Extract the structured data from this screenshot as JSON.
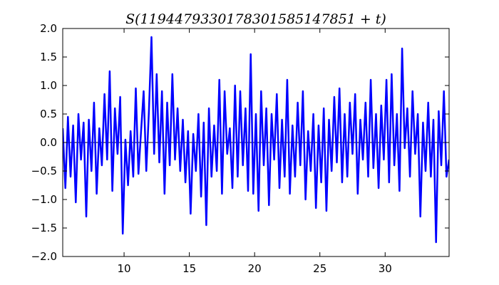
{
  "chart_data": {
    "type": "line",
    "title": "S(1194479330178301585147851 + t)",
    "xlabel": "",
    "ylabel": "",
    "xlim": [
      5.3,
      34.9
    ],
    "ylim": [
      -2.0,
      2.0
    ],
    "x_ticks": [
      10,
      15,
      20,
      25,
      30
    ],
    "y_ticks": [
      -2.0,
      -1.5,
      -1.0,
      -0.5,
      0.0,
      0.5,
      1.0,
      1.5,
      2.0
    ],
    "x_tick_labels": [
      "10",
      "15",
      "20",
      "25",
      "30"
    ],
    "y_tick_labels": [
      "−2.0",
      "−1.5",
      "−1.0",
      "−0.5",
      "0.0",
      "0.5",
      "1.0",
      "1.5",
      "2.0"
    ],
    "baseline_y": 0.0,
    "grid": false,
    "legend": "none",
    "series": [
      {
        "color": "#0000ff",
        "x": [
          5.3,
          5.5,
          5.7,
          5.9,
          6.1,
          6.3,
          6.5,
          6.7,
          6.9,
          7.1,
          7.3,
          7.5,
          7.7,
          7.9,
          8.1,
          8.3,
          8.5,
          8.7,
          8.9,
          9.1,
          9.3,
          9.5,
          9.7,
          9.9,
          10.1,
          10.3,
          10.5,
          10.7,
          10.9,
          11.1,
          11.3,
          11.5,
          11.7,
          11.9,
          12.1,
          12.3,
          12.5,
          12.7,
          12.9,
          13.1,
          13.3,
          13.5,
          13.7,
          13.9,
          14.1,
          14.3,
          14.5,
          14.7,
          14.9,
          15.1,
          15.3,
          15.5,
          15.7,
          15.9,
          16.1,
          16.3,
          16.5,
          16.7,
          16.9,
          17.1,
          17.3,
          17.5,
          17.7,
          17.9,
          18.1,
          18.3,
          18.5,
          18.7,
          18.9,
          19.1,
          19.3,
          19.5,
          19.7,
          19.9,
          20.1,
          20.3,
          20.5,
          20.7,
          20.9,
          21.1,
          21.3,
          21.5,
          21.7,
          21.9,
          22.1,
          22.3,
          22.5,
          22.7,
          22.9,
          23.1,
          23.3,
          23.5,
          23.7,
          23.9,
          24.1,
          24.3,
          24.5,
          24.7,
          24.9,
          25.1,
          25.3,
          25.5,
          25.7,
          25.9,
          26.1,
          26.3,
          26.5,
          26.7,
          26.9,
          27.1,
          27.3,
          27.5,
          27.7,
          27.9,
          28.1,
          28.3,
          28.5,
          28.7,
          28.9,
          29.1,
          29.3,
          29.5,
          29.7,
          29.9,
          30.1,
          30.3,
          30.5,
          30.7,
          30.9,
          31.1,
          31.3,
          31.5,
          31.7,
          31.9,
          32.1,
          32.3,
          32.5,
          32.7,
          32.9,
          33.1,
          33.3,
          33.5,
          33.7,
          33.9,
          34.1,
          34.3,
          34.5,
          34.7,
          34.9
        ],
        "y": [
          0.25,
          -0.8,
          0.45,
          -0.6,
          0.3,
          -1.05,
          0.5,
          -0.3,
          0.35,
          -1.3,
          0.4,
          -0.5,
          0.7,
          -0.9,
          0.25,
          -0.4,
          0.85,
          -0.3,
          1.25,
          -0.85,
          0.6,
          -0.2,
          0.8,
          -1.6,
          0.05,
          -0.75,
          0.2,
          -0.6,
          0.95,
          -0.55,
          0.2,
          0.9,
          -0.5,
          0.55,
          1.85,
          -0.2,
          1.2,
          -0.35,
          0.9,
          -0.9,
          0.7,
          -0.4,
          1.2,
          -0.3,
          0.6,
          -0.5,
          0.4,
          -0.7,
          0.2,
          -1.25,
          0.15,
          -0.5,
          0.5,
          -0.95,
          0.35,
          -1.45,
          0.6,
          -0.6,
          0.3,
          -0.5,
          1.1,
          -0.9,
          0.9,
          -0.2,
          0.25,
          -0.8,
          1.0,
          -0.6,
          0.9,
          -0.4,
          0.6,
          -0.85,
          1.55,
          -0.9,
          0.5,
          -1.2,
          0.9,
          -0.4,
          0.6,
          -1.1,
          0.5,
          -0.3,
          0.85,
          -0.8,
          0.4,
          -0.6,
          1.1,
          -0.9,
          0.3,
          -0.6,
          0.7,
          -0.4,
          0.9,
          -1.0,
          0.2,
          -0.5,
          0.5,
          -1.15,
          0.3,
          -0.7,
          0.6,
          -1.2,
          0.4,
          -0.5,
          0.8,
          -0.35,
          0.95,
          -0.7,
          0.5,
          -0.6,
          0.7,
          -0.2,
          0.85,
          -0.9,
          0.4,
          -0.3,
          0.7,
          -0.6,
          1.1,
          -0.45,
          0.5,
          -0.8,
          0.65,
          -0.3,
          1.1,
          -0.7,
          1.2,
          -0.4,
          0.5,
          -0.85,
          1.65,
          -0.1,
          0.6,
          -0.6,
          0.9,
          -0.2,
          0.5,
          -1.3,
          0.35,
          -0.5,
          0.7,
          -0.6,
          0.4,
          -1.75,
          0.55,
          -0.4,
          0.9,
          -0.6,
          -0.3
        ]
      }
    ]
  }
}
